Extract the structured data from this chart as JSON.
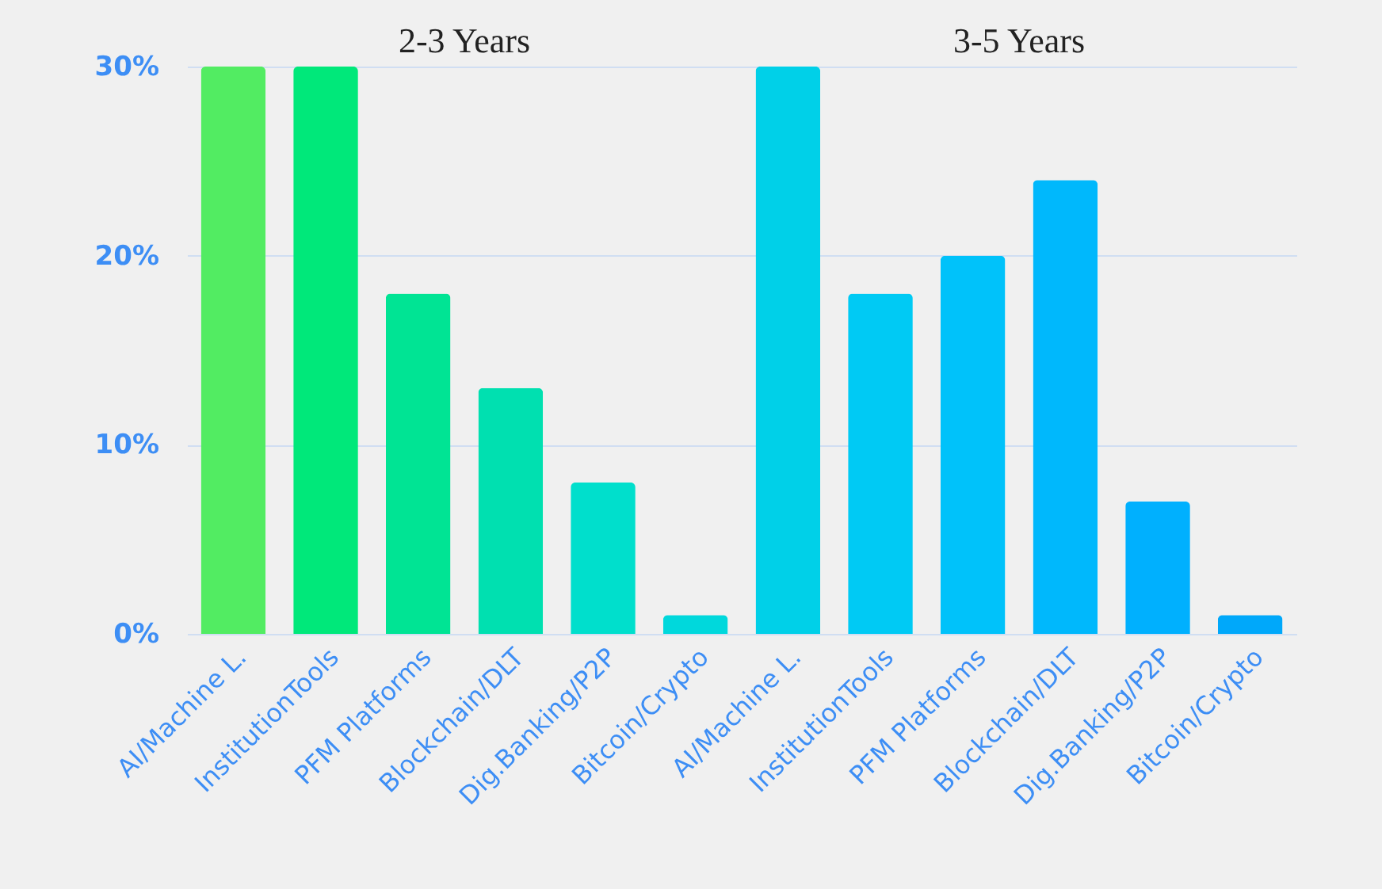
{
  "chart_data": {
    "type": "bar",
    "categories": [
      "AI/Machine L.",
      "InstitutionTools",
      "PFM Platforms",
      "Blockchain/DLT",
      "Dig.Banking/P2P",
      "Bitcoin/Crypto",
      "AI/Machine L.",
      "InstitutionTools",
      "PFM Platforms",
      "Blockchain/DLT",
      "Dig.Banking/P2P",
      "Bitcoin/Crypto"
    ],
    "values": [
      30,
      30,
      18,
      13,
      8,
      1,
      30,
      18,
      20,
      24,
      7,
      1
    ],
    "colors": [
      "#52ec62",
      "#00e87a",
      "#00e494",
      "#00e0b0",
      "#00dfcc",
      "#00d8dc",
      "#00d0e8",
      "#00caf4",
      "#00c2fa",
      "#00b8fc",
      "#00b0fe",
      "#00a8fa"
    ],
    "annotations": [
      "2-3 Years",
      "3-5 Years"
    ],
    "ylim": [
      0,
      30
    ],
    "yticks": [
      {
        "value": 0,
        "label": "0%"
      },
      {
        "value": 10,
        "label": "10%"
      },
      {
        "value": 20,
        "label": "20%"
      },
      {
        "value": 30,
        "label": "30%"
      }
    ],
    "grid": "y"
  }
}
